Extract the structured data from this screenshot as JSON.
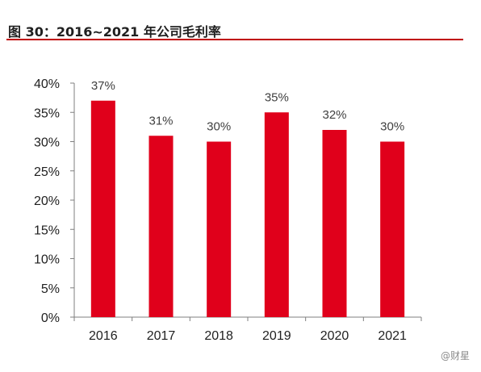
{
  "figure": {
    "title": "图 30：2016~2021 年公司毛利率",
    "watermark": "@财星"
  },
  "chart_data": {
    "type": "bar",
    "categories": [
      "2016",
      "2017",
      "2018",
      "2019",
      "2020",
      "2021"
    ],
    "values": [
      37,
      31,
      30,
      35,
      32,
      30
    ],
    "data_labels": [
      "37%",
      "31%",
      "30%",
      "35%",
      "32%",
      "30%"
    ],
    "yticks": [
      "0%",
      "5%",
      "10%",
      "15%",
      "20%",
      "25%",
      "30%",
      "35%",
      "40%"
    ],
    "ylim": [
      0,
      40
    ],
    "bar_color": "#e0001b",
    "grid": false,
    "legend": "none",
    "title": "",
    "xlabel": "",
    "ylabel": ""
  }
}
